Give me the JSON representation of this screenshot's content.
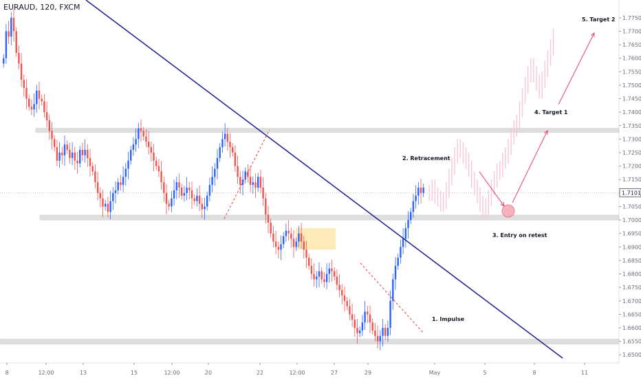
{
  "header": {
    "title": "EURAUD, 120, FXCM"
  },
  "chart_data": {
    "type": "candlestick",
    "symbol": "EURAUD",
    "interval": "120",
    "source": "FXCM",
    "ylim": [
      1.647,
      1.777
    ],
    "y_ticks": [
      "1.65000",
      "1.65500",
      "1.66000",
      "1.66500",
      "1.67000",
      "1.67500",
      "1.68000",
      "1.68500",
      "1.69000",
      "1.69500",
      "1.70000",
      "1.70500",
      "1.71000",
      "1.71500",
      "1.72000",
      "1.72500",
      "1.73000",
      "1.73500",
      "1.74000",
      "1.74500",
      "1.75000",
      "1.75500",
      "1.76000",
      "1.76500",
      "1.77000",
      "1.77500"
    ],
    "x_ticks": [
      "8",
      "12:00",
      "13",
      "15",
      "12:00",
      "20",
      "22",
      "12:00",
      "27",
      "29",
      "May",
      "5",
      "8",
      "11"
    ],
    "current_price": "1.71010",
    "colors": {
      "up": "#2962ff",
      "down": "#ef5350",
      "projection": "#f7c8d3",
      "trendline": "#1a1c8c",
      "arrow": "#e8507a",
      "zone": "#d9d9d9",
      "highlight": "#fbe6a6"
    },
    "close_path": [
      1.76,
      1.77,
      1.768,
      1.775,
      1.77,
      1.762,
      1.758,
      1.752,
      1.749,
      1.745,
      1.742,
      1.741,
      1.743,
      1.748,
      1.745,
      1.744,
      1.74,
      1.737,
      1.733,
      1.73,
      1.727,
      1.722,
      1.725,
      1.724,
      1.728,
      1.726,
      1.723,
      1.725,
      1.722,
      1.721,
      1.726,
      1.724,
      1.726,
      1.723,
      1.72,
      1.718,
      1.714,
      1.71,
      1.708,
      1.705,
      1.706,
      1.703,
      1.707,
      1.71,
      1.711,
      1.714,
      1.713,
      1.716,
      1.719,
      1.722,
      1.726,
      1.728,
      1.73,
      1.734,
      1.733,
      1.731,
      1.729,
      1.727,
      1.725,
      1.722,
      1.72,
      1.718,
      1.714,
      1.71,
      1.706,
      1.705,
      1.708,
      1.711,
      1.714,
      1.712,
      1.709,
      1.71,
      1.712,
      1.711,
      1.708,
      1.707,
      1.709,
      1.706,
      1.704,
      1.705,
      1.709,
      1.713,
      1.716,
      1.719,
      1.723,
      1.727,
      1.73,
      1.732,
      1.729,
      1.727,
      1.725,
      1.72,
      1.716,
      1.713,
      1.715,
      1.718,
      1.716,
      1.713,
      1.714,
      1.712,
      1.716,
      1.712,
      1.708,
      1.702,
      1.699,
      1.695,
      1.692,
      1.69,
      1.689,
      1.691,
      1.694,
      1.696,
      1.695,
      1.693,
      1.69,
      1.692,
      1.695,
      1.692,
      1.689,
      1.686,
      1.683,
      1.68,
      1.678,
      1.679,
      1.681,
      1.678,
      1.677,
      1.68,
      1.682,
      1.681,
      1.679,
      1.676,
      1.674,
      1.672,
      1.67,
      1.668,
      1.665,
      1.663,
      1.66,
      1.658,
      1.659,
      1.662,
      1.666,
      1.665,
      1.662,
      1.659,
      1.657,
      1.655,
      1.657,
      1.66,
      1.657,
      1.66,
      1.67,
      1.678,
      1.683,
      1.686,
      1.69,
      1.693,
      1.697,
      1.7,
      1.703,
      1.707,
      1.709,
      1.712,
      1.71,
      1.712
    ],
    "projection_path": [
      1.71,
      1.712,
      1.709,
      1.708,
      1.706,
      1.707,
      1.711,
      1.716,
      1.72,
      1.724,
      1.727,
      1.726,
      1.724,
      1.722,
      1.719,
      1.715,
      1.712,
      1.709,
      1.706,
      1.704,
      1.705,
      1.708,
      1.712,
      1.715,
      1.718,
      1.719,
      1.722,
      1.724,
      1.727,
      1.731,
      1.734,
      1.736,
      1.741,
      1.746,
      1.75,
      1.754,
      1.757,
      1.754,
      1.751,
      1.748,
      1.752,
      1.756,
      1.76,
      1.764,
      1.768
    ],
    "support_zones": [
      [
        1.7325,
        1.734
      ],
      [
        1.7,
        1.7018
      ],
      [
        1.654,
        1.6558
      ]
    ],
    "trendline": [
      [
        1.782,
        0
      ],
      [
        1.649,
        1
      ]
    ],
    "annotations": [
      "1. Impulse",
      "2. Retracement",
      "3. Entry on retest",
      "4. Target 1",
      "5. Target 2"
    ]
  }
}
